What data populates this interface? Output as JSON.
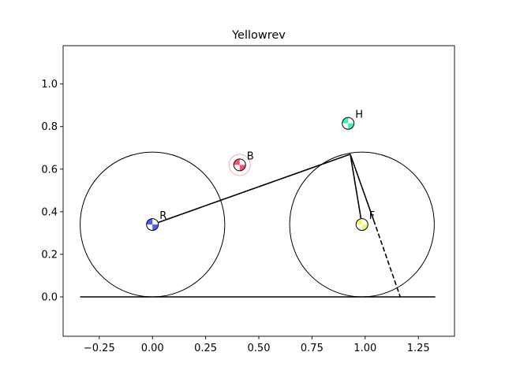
{
  "chart_data": {
    "type": "scatter",
    "title": "Yellowrev",
    "xlabel": "",
    "ylabel": "",
    "xlim": [
      -0.42,
      1.42
    ],
    "ylim": [
      -0.185,
      1.18
    ],
    "xticks": [
      {
        "value": -0.25,
        "label": "−0.25"
      },
      {
        "value": 0.0,
        "label": "0.00"
      },
      {
        "value": 0.25,
        "label": "0.25"
      },
      {
        "value": 0.5,
        "label": "0.50"
      },
      {
        "value": 0.75,
        "label": "0.75"
      },
      {
        "value": 1.0,
        "label": "1.00"
      },
      {
        "value": 1.25,
        "label": "1.25"
      }
    ],
    "yticks": [
      {
        "value": 0.0,
        "label": "0.0"
      },
      {
        "value": 0.2,
        "label": "0.2"
      },
      {
        "value": 0.4,
        "label": "0.4"
      },
      {
        "value": 0.6,
        "label": "0.6"
      },
      {
        "value": 0.8,
        "label": "0.8"
      },
      {
        "value": 1.0,
        "label": "1.0"
      }
    ],
    "grid": false,
    "ground": {
      "x1": -0.34,
      "x2": 1.33,
      "y": 0.0
    },
    "wheels": [
      {
        "name": "rear-wheel",
        "cx": 0.0,
        "cy": 0.34,
        "r": 0.34
      },
      {
        "name": "front-wheel",
        "cx": 0.985,
        "cy": 0.34,
        "r": 0.34
      }
    ],
    "frame_segments": [
      {
        "name": "rear-to-head-segment",
        "x1": 0.0,
        "y1": 0.34,
        "x2": 0.93,
        "y2": 0.67,
        "dashed": false
      },
      {
        "name": "head-to-front-segment",
        "x1": 0.93,
        "y1": 0.67,
        "x2": 0.985,
        "y2": 0.34,
        "dashed": false
      },
      {
        "name": "fork-solid-segment",
        "x1": 0.93,
        "y1": 0.67,
        "x2": 1.04,
        "y2": 0.36,
        "dashed": false
      },
      {
        "name": "fork-dashed-segment",
        "x1": 1.04,
        "y1": 0.36,
        "x2": 1.165,
        "y2": 0.0,
        "dashed": true
      }
    ],
    "points": [
      {
        "label": "R",
        "x": 0.0,
        "y": 0.34,
        "color": "#4c5cff"
      },
      {
        "label": "B",
        "x": 0.41,
        "y": 0.62,
        "color": "#ff4f6d",
        "halo": true,
        "halo_color": "#f5a8b4"
      },
      {
        "label": "H",
        "x": 0.92,
        "y": 0.815,
        "color": "#3cf0b4"
      },
      {
        "label": "F",
        "x": 0.985,
        "y": 0.34,
        "color": "#f4f46a"
      }
    ]
  }
}
